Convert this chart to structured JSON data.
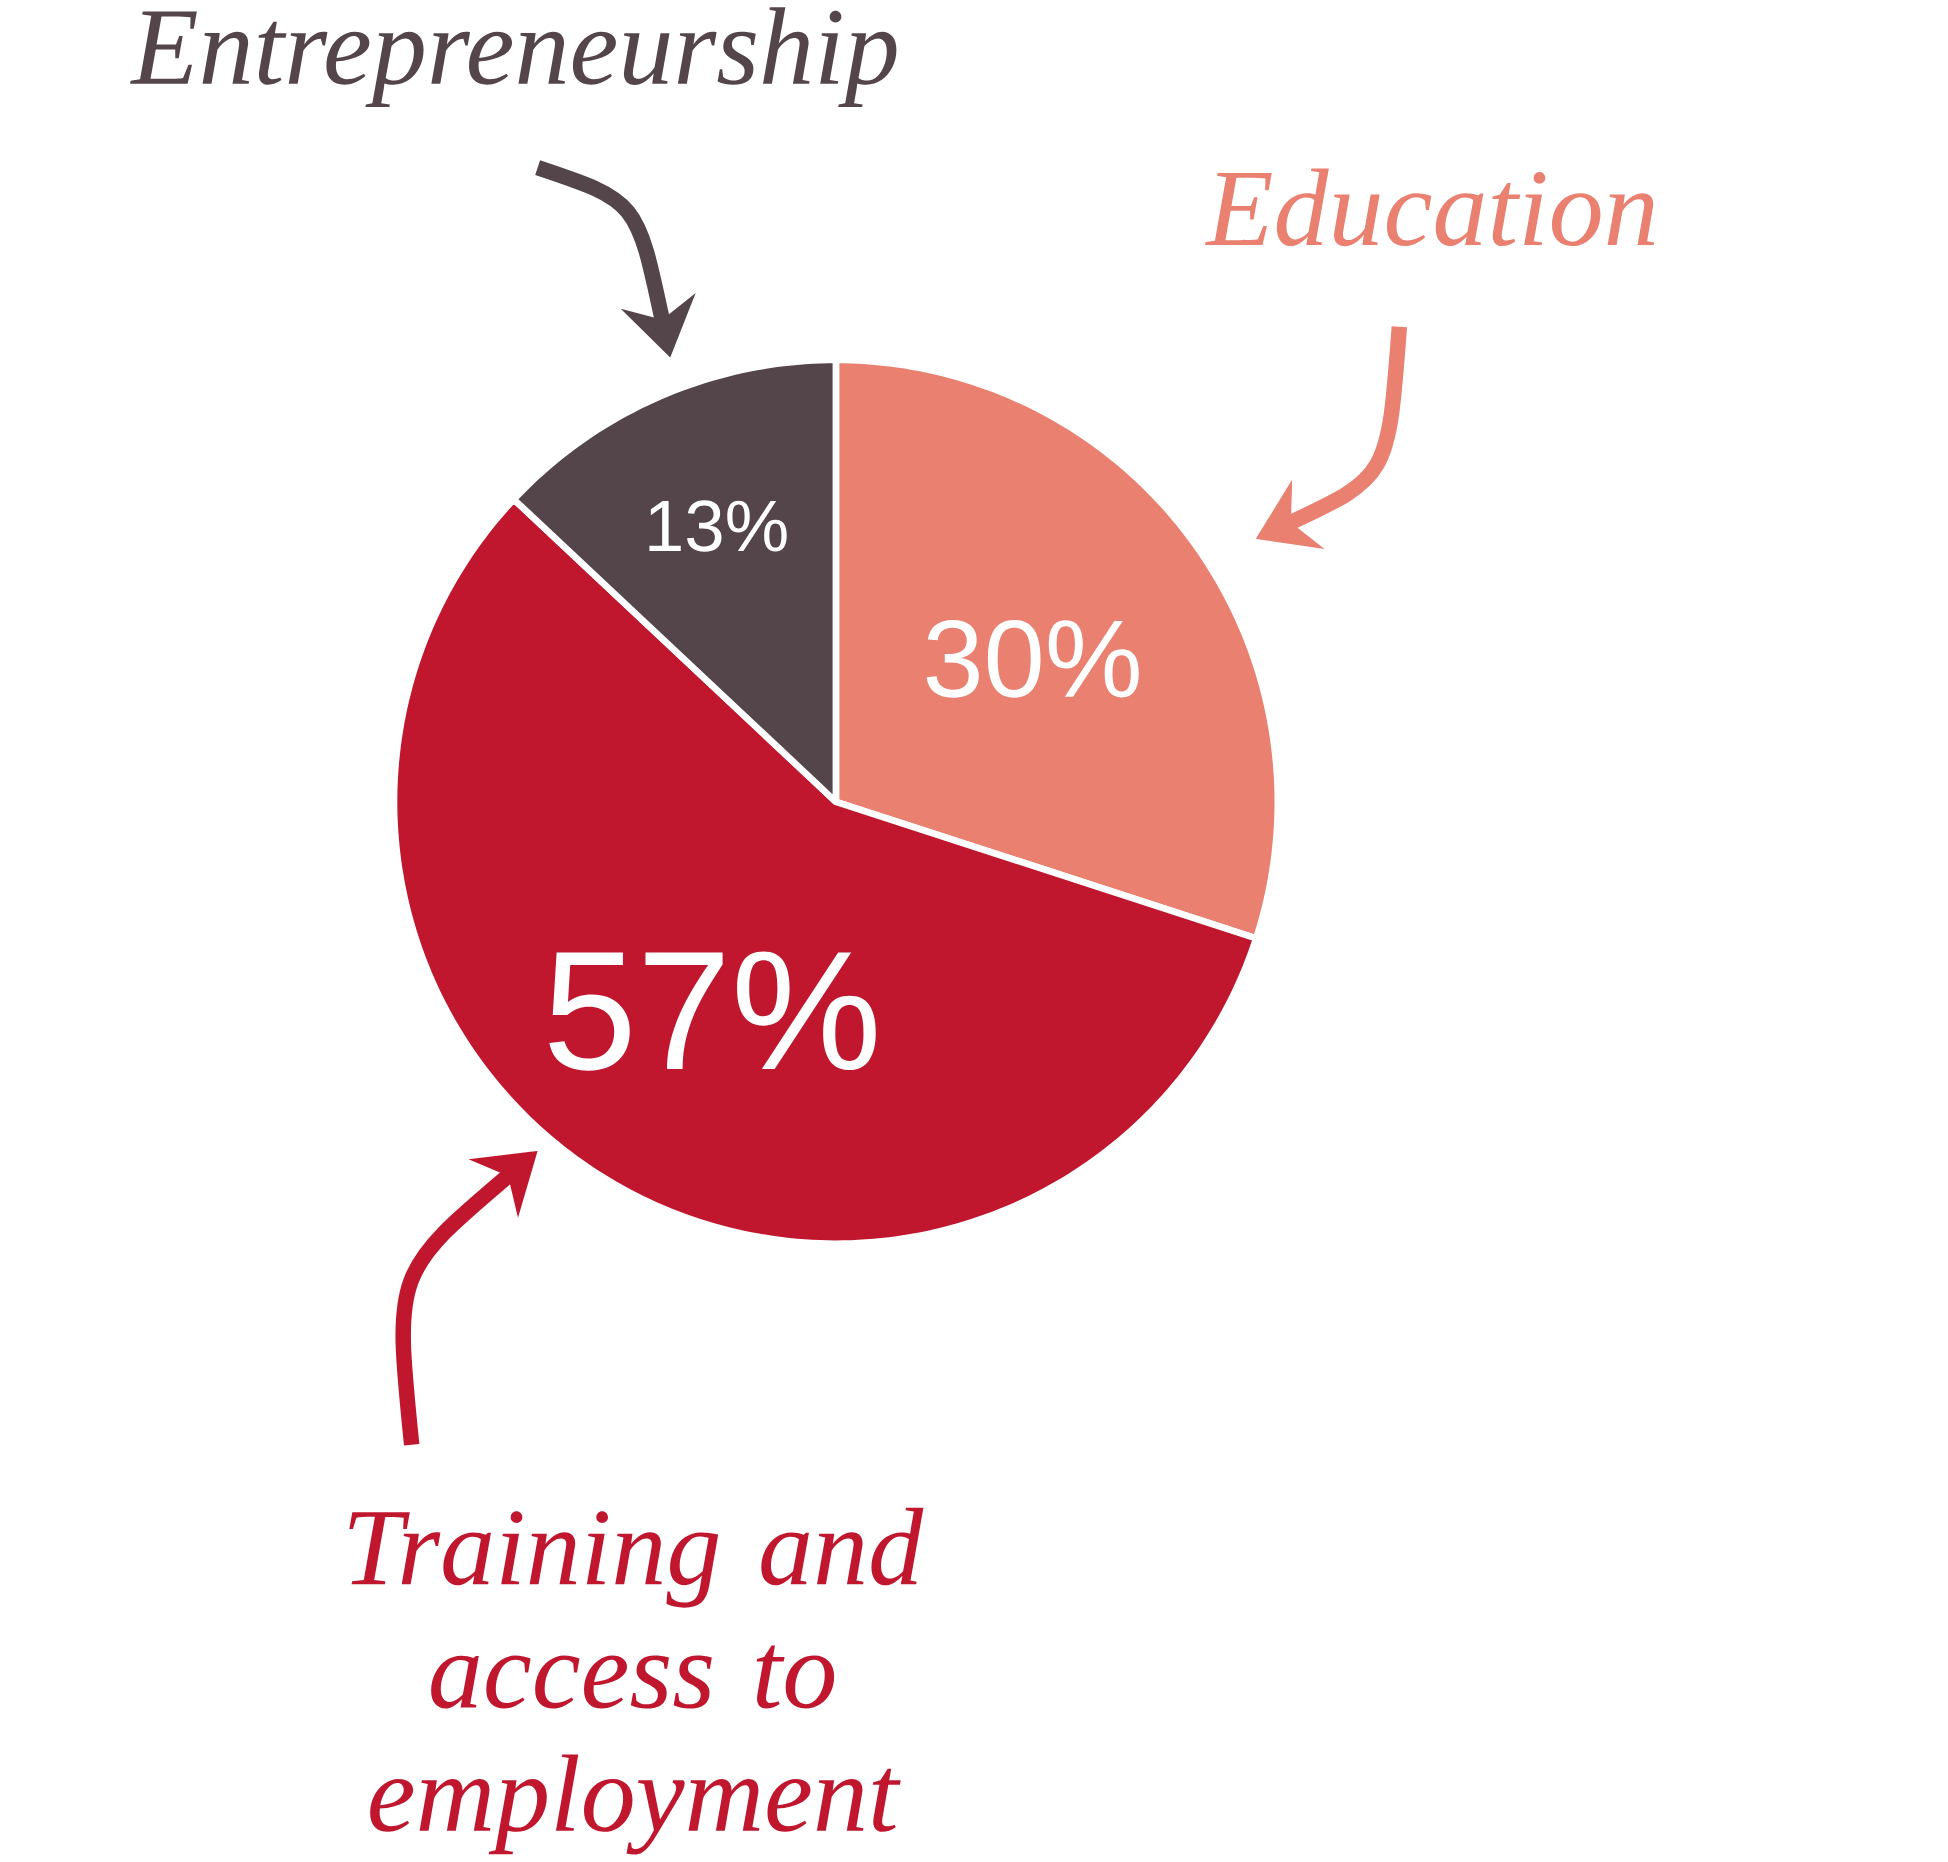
{
  "chart_data": {
    "type": "pie",
    "categories": [
      "Education",
      "Training and access to employment",
      "Entrepreneurship"
    ],
    "values": [
      30,
      57,
      13
    ],
    "colors": [
      "#e98070",
      "#c0172f",
      "#54454a"
    ],
    "value_labels": [
      "30%",
      "57%",
      "13%"
    ]
  }
}
